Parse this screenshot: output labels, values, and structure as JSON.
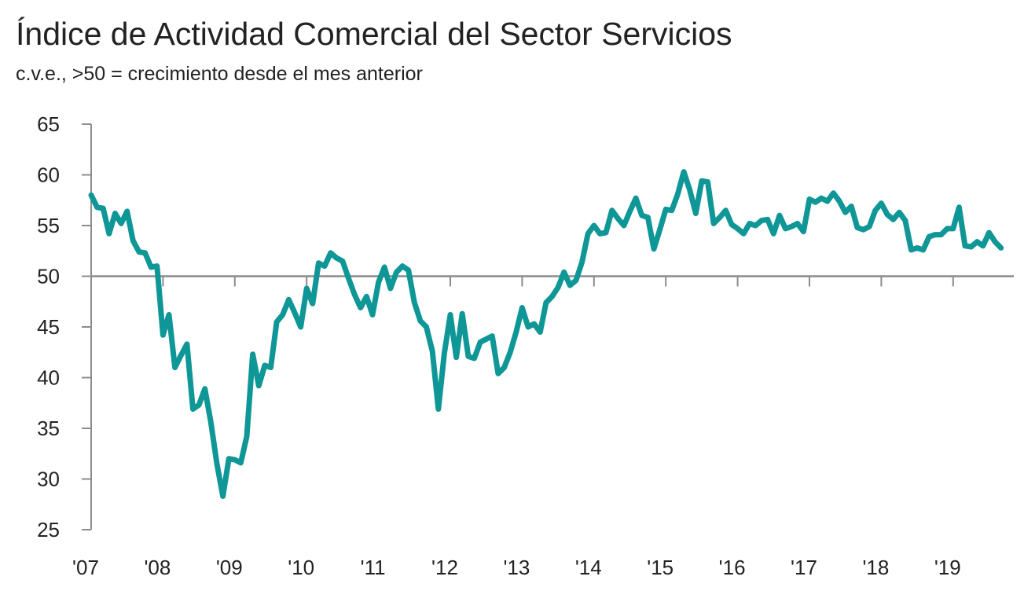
{
  "chart_data": {
    "type": "line",
    "title": "Índice de Actividad Comercial del Sector Servicios",
    "subtitle": "c.v.e., >50 = crecimiento desde el mes anterior",
    "xlabel": "",
    "ylabel": "",
    "x_start_year": 2007,
    "ylim": [
      25,
      65
    ],
    "yticks": [
      25,
      30,
      35,
      40,
      45,
      50,
      55,
      60,
      65
    ],
    "xtick_labels": [
      "'07",
      "'08",
      "'09",
      "'10",
      "'11",
      "'12",
      "'13",
      "'14",
      "'15",
      "'16",
      "'17",
      "'18",
      "'19"
    ],
    "reference_line": 50,
    "grid": false,
    "series": [
      {
        "color": "#0f9696",
        "values": [
          58.0,
          56.8,
          56.7,
          54.2,
          56.2,
          55.2,
          56.4,
          53.5,
          52.4,
          52.3,
          50.9,
          51.0,
          44.2,
          46.2,
          41.0,
          42.2,
          43.3,
          36.9,
          37.3,
          38.9,
          35.6,
          31.5,
          28.3,
          32.0,
          31.9,
          31.6,
          34.2,
          42.3,
          39.2,
          41.2,
          41.0,
          45.5,
          46.2,
          47.7,
          46.4,
          45.0,
          48.8,
          47.3,
          51.3,
          51.0,
          52.3,
          51.8,
          51.5,
          49.8,
          48.2,
          46.9,
          48.0,
          46.2,
          49.4,
          50.9,
          48.8,
          50.4,
          51.0,
          50.6,
          47.4,
          45.6,
          45.0,
          42.6,
          36.9,
          42.4,
          46.2,
          42.0,
          46.3,
          42.1,
          41.9,
          43.5,
          43.8,
          44.1,
          40.4,
          41.0,
          42.5,
          44.5,
          46.9,
          45.0,
          45.3,
          44.5,
          47.4,
          48.0,
          48.9,
          50.4,
          49.1,
          49.6,
          51.4,
          54.2,
          55.0,
          54.2,
          54.3,
          56.5,
          55.7,
          55.0,
          56.4,
          57.7,
          56.0,
          55.8,
          52.7,
          54.6,
          56.6,
          56.5,
          58.1,
          60.3,
          58.5,
          56.2,
          59.4,
          59.3,
          55.2,
          55.8,
          56.5,
          55.1,
          54.7,
          54.2,
          55.2,
          55.0,
          55.5,
          55.6,
          54.2,
          56.0,
          54.7,
          54.9,
          55.2,
          54.4,
          57.6,
          57.3,
          57.7,
          57.4,
          58.2,
          57.4,
          56.3,
          56.9,
          54.8,
          54.6,
          54.9,
          56.5,
          57.2,
          56.1,
          55.6,
          56.3,
          55.5,
          52.6,
          52.8,
          52.6,
          53.9,
          54.1,
          54.1,
          54.7,
          54.7,
          56.8,
          53.0,
          52.9,
          53.4,
          53.0,
          54.3,
          53.4,
          52.8
        ]
      }
    ]
  }
}
